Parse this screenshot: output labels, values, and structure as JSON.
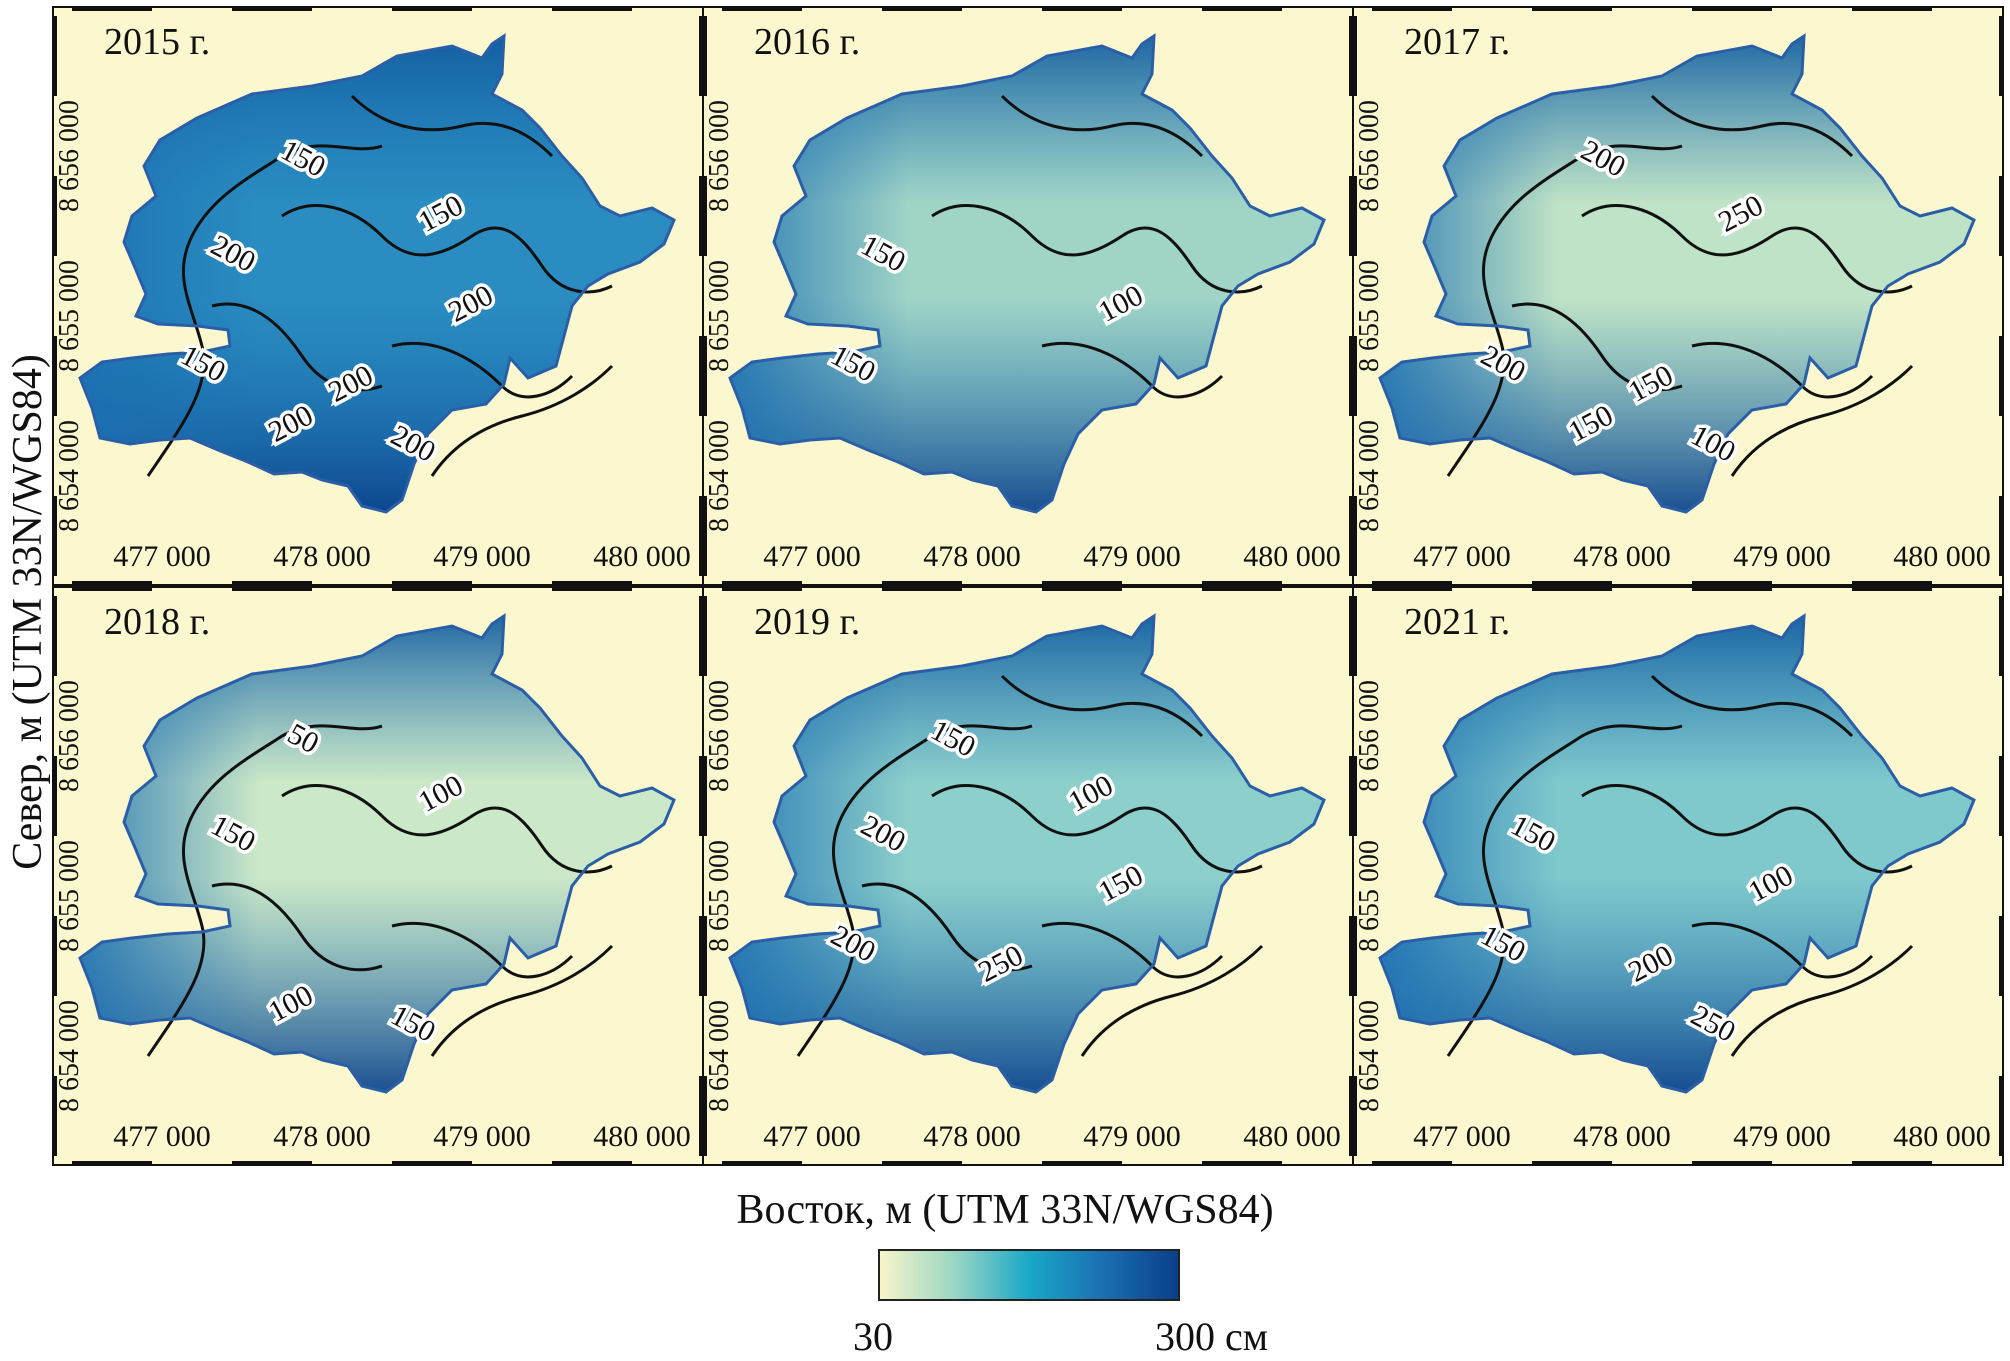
{
  "figure": {
    "y_axis_title": "Север, м (UTM 33N/WGS84)",
    "x_axis_title": "Восток, м (UTM 33N/WGS84)",
    "x_tick_labels": [
      "477 000",
      "478 000",
      "479 000",
      "480 000"
    ],
    "y_tick_labels": [
      "8 654 000",
      "8 655 000",
      "8 656 000"
    ],
    "colorbar": {
      "min_label": "30",
      "max_label": "300 см",
      "colors": [
        "#f8f5c8",
        "#9ad6c4",
        "#1aa8c8",
        "#1b6fb2",
        "#0a3f8a"
      ]
    },
    "background_color": "#fbf8cf",
    "outline_color": "#2a5fa8",
    "contour_color": "#111111"
  },
  "panels": [
    {
      "year_label": "2015 г.",
      "shade": "#2a8cc0",
      "contour_labels": [
        "150",
        "150",
        "200",
        "200",
        "150",
        "200",
        "200",
        "200"
      ]
    },
    {
      "year_label": "2016 г.",
      "shade": "#9fd4c6",
      "contour_labels": [
        "150",
        "100",
        "150"
      ]
    },
    {
      "year_label": "2017 г.",
      "shade": "#bfe3c6",
      "contour_labels": [
        "200",
        "150",
        "100",
        "150",
        "200",
        "250"
      ]
    },
    {
      "year_label": "2018 г.",
      "shade": "#cbe8c8",
      "contour_labels": [
        "150",
        "100",
        "50",
        "100",
        "150"
      ]
    },
    {
      "year_label": "2019 г.",
      "shade": "#8ccfcb",
      "contour_labels": [
        "150",
        "100",
        "200",
        "150",
        "200",
        "250"
      ]
    },
    {
      "year_label": "2021 г.",
      "shade": "#7fc8cc",
      "contour_labels": [
        "150",
        "100",
        "150",
        "200",
        "250"
      ]
    }
  ]
}
